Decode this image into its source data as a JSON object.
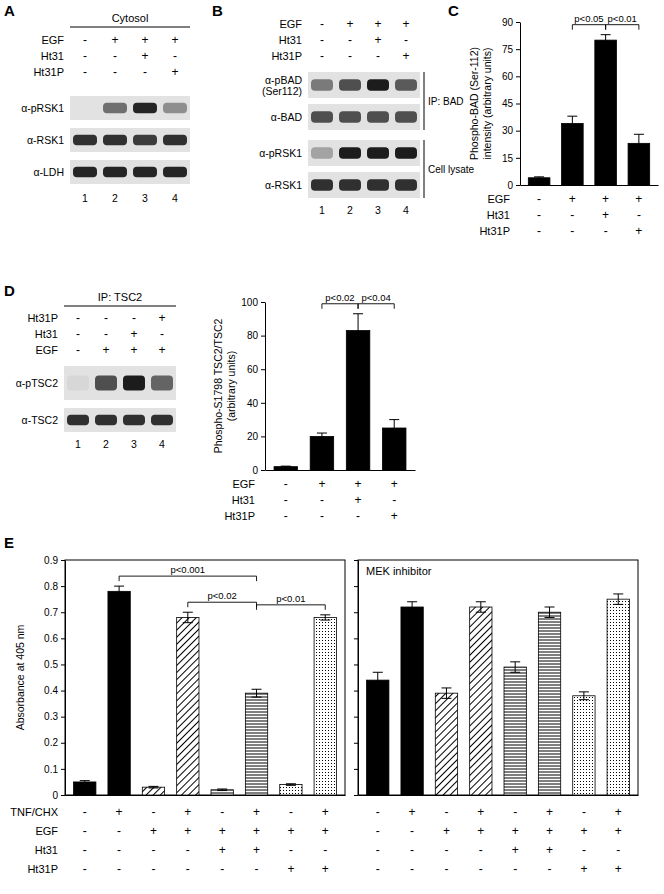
{
  "chart_data": [
    {
      "type": "bar",
      "panel_label": "C",
      "y_label": [
        "Phospho-BAD (Ser-112)",
        "intensity (arbitrary units)"
      ],
      "categories": [
        null,
        null,
        null,
        null
      ],
      "values": [
        4,
        34,
        80,
        23
      ],
      "errors": [
        0.5,
        4,
        3,
        5
      ],
      "color": "#000000",
      "ylim": [
        0,
        90
      ],
      "yticks": [
        0,
        15,
        30,
        45,
        60,
        75,
        90
      ],
      "tick_labels": "y",
      "annotations": [
        {
          "text": "p<0.05",
          "between": [
            1,
            2
          ]
        },
        {
          "text": "p<0.01",
          "between": [
            2,
            3
          ]
        }
      ],
      "conditions": [
        {
          "label": "EGF",
          "signs": [
            "-",
            "+",
            "+",
            "+"
          ]
        },
        {
          "label": "Ht31",
          "signs": [
            "-",
            "-",
            "+",
            "-"
          ]
        },
        {
          "label": "Ht31P",
          "signs": [
            "-",
            "-",
            "-",
            "+"
          ]
        }
      ]
    },
    {
      "type": "bar",
      "y_label": [
        "Phospho-S1798 TSC2/TSC2",
        "(arbitrary units)"
      ],
      "categories": [
        null,
        null,
        null,
        null
      ],
      "values": [
        2,
        20,
        83,
        25
      ],
      "errors": [
        0.3,
        2,
        10,
        5
      ],
      "color": "#000000",
      "ylim": [
        0,
        100
      ],
      "yticks": [
        0,
        20,
        40,
        60,
        80,
        100
      ],
      "tick_labels": "y",
      "annotations": [
        {
          "text": "p<0.02",
          "between": [
            1,
            2
          ]
        },
        {
          "text": "p<0.04",
          "between": [
            2,
            3
          ]
        }
      ],
      "conditions": [
        {
          "label": "EGF",
          "signs": [
            "-",
            "+",
            "+",
            "+"
          ]
        },
        {
          "label": "Ht31",
          "signs": [
            "-",
            "-",
            "+",
            "-"
          ]
        },
        {
          "label": "Ht31P",
          "signs": [
            "-",
            "-",
            "-",
            "+"
          ]
        }
      ]
    },
    {
      "type": "bar",
      "panel_label": "E",
      "y_label": [
        "Absorbance at 405 nm"
      ],
      "categories": [
        null,
        null,
        null,
        null,
        null,
        null,
        null,
        null
      ],
      "values": [
        0.05,
        0.78,
        0.03,
        0.68,
        0.02,
        0.39,
        0.04,
        0.68
      ],
      "errors": [
        0.005,
        0.02,
        0.003,
        0.02,
        0.003,
        0.015,
        0.003,
        0.01
      ],
      "color": "#000000",
      "ylim": [
        0,
        0.9
      ],
      "yticks": [
        0,
        0.1,
        0.2,
        0.3,
        0.4,
        0.5,
        0.6,
        0.7,
        0.8,
        0.9
      ],
      "tick_labels": "y",
      "annotations": [
        {
          "text": "p<0.001",
          "between": [
            1,
            5
          ]
        },
        {
          "text": "p<0.02",
          "between": [
            3,
            5
          ]
        },
        {
          "text": "p<0.01",
          "between": [
            5,
            7
          ]
        }
      ],
      "conditions": [
        {
          "label": "TNF/CHX",
          "signs": [
            "-",
            "+",
            "-",
            "+",
            "-",
            "+",
            "-",
            "+"
          ]
        },
        {
          "label": "EGF",
          "signs": [
            "-",
            "-",
            "+",
            "+",
            "+",
            "+",
            "+",
            "+"
          ]
        },
        {
          "label": "Ht31",
          "signs": [
            "-",
            "-",
            "-",
            "-",
            "+",
            "+",
            "-",
            "-"
          ]
        },
        {
          "label": "Ht31P",
          "signs": [
            "-",
            "-",
            "-",
            "-",
            "-",
            "-",
            "+",
            "+"
          ]
        }
      ]
    },
    {
      "type": "bar",
      "title": "MEK inhibitor",
      "categories": [
        null,
        null,
        null,
        null,
        null,
        null,
        null,
        null
      ],
      "values": [
        0.44,
        0.72,
        0.39,
        0.72,
        0.49,
        0.7,
        0.38,
        0.75
      ],
      "errors": [
        0.03,
        0.02,
        0.02,
        0.02,
        0.02,
        0.02,
        0.015,
        0.02
      ],
      "color": "#000000",
      "ylim": [
        0,
        0.9
      ],
      "yticks": [
        0,
        0.1,
        0.2,
        0.3,
        0.4,
        0.5,
        0.6,
        0.7,
        0.8,
        0.9
      ],
      "tick_labels": false,
      "conditions": [
        {
          "signs": [
            "-",
            "+",
            "-",
            "+",
            "-",
            "+",
            "-",
            "+"
          ]
        },
        {
          "signs": [
            "-",
            "-",
            "+",
            "+",
            "+",
            "+",
            "+",
            "+"
          ]
        },
        {
          "signs": [
            "-",
            "-",
            "-",
            "-",
            "+",
            "+",
            "-",
            "-"
          ]
        },
        {
          "signs": [
            "-",
            "-",
            "-",
            "-",
            "-",
            "-",
            "+",
            "+"
          ]
        }
      ]
    }
  ],
  "blots": [
    {
      "panel_label": "A",
      "header": "Cytosol",
      "conditions": [
        {
          "label": "EGF",
          "signs": [
            "-",
            "+",
            "+",
            "+"
          ]
        },
        {
          "label": "Ht31",
          "signs": [
            "-",
            "-",
            "+",
            "-"
          ]
        },
        {
          "label": "Ht31P",
          "signs": [
            "-",
            "-",
            "-",
            "+"
          ]
        }
      ],
      "rows": [
        {
          "label": [
            "α-pRSK1"
          ],
          "intensities": [
            0,
            0.55,
            0.9,
            0.4
          ]
        },
        {
          "label": [
            "α-RSK1"
          ],
          "intensities": [
            0.85,
            0.85,
            0.8,
            0.85
          ]
        },
        {
          "label": [
            "α-LDH"
          ],
          "intensities": [
            0.9,
            0.9,
            0.9,
            0.9
          ]
        }
      ],
      "lanes": [
        1,
        2,
        3,
        4
      ]
    },
    {
      "panel_label": "B",
      "conditions": [
        {
          "label": "EGF",
          "signs": [
            "-",
            "+",
            "+",
            "+"
          ]
        },
        {
          "label": "Ht31",
          "signs": [
            "-",
            "-",
            "+",
            "-"
          ]
        },
        {
          "label": "Ht31P",
          "signs": [
            "-",
            "-",
            "-",
            "+"
          ]
        }
      ],
      "rows": [
        {
          "label": [
            "α-pBAD",
            "(Ser112)"
          ],
          "intensities": [
            0.5,
            0.7,
            0.95,
            0.65
          ]
        },
        {
          "label": [
            "α-BAD"
          ],
          "intensities": [
            0.7,
            0.7,
            0.7,
            0.7
          ]
        },
        {
          "label": [
            "α-pRSK1"
          ],
          "intensities": [
            0.3,
            0.95,
            0.95,
            0.95
          ]
        },
        {
          "label": [
            "α-RSK1"
          ],
          "intensities": [
            0.85,
            0.85,
            0.85,
            0.85
          ]
        }
      ],
      "groups": [
        {
          "label": "IP: BAD",
          "rows": [
            0,
            1
          ]
        },
        {
          "label": "Cell lysate",
          "rows": [
            2,
            3
          ]
        }
      ],
      "lanes": [
        1,
        2,
        3,
        4
      ]
    },
    {
      "panel_label": "D",
      "header": "IP: TSC2",
      "conditions": [
        {
          "label": "Ht31P",
          "signs": [
            "-",
            "-",
            "-",
            "+"
          ]
        },
        {
          "label": "Ht31",
          "signs": [
            "-",
            "-",
            "+",
            "-"
          ]
        },
        {
          "label": "EGF",
          "signs": [
            "-",
            "+",
            "+",
            "+"
          ]
        }
      ],
      "rows": [
        {
          "label": [
            "α-pTSC2"
          ],
          "intensities": [
            0.05,
            0.7,
            0.95,
            0.6
          ]
        },
        {
          "label": [
            "α-TSC2"
          ],
          "intensities": [
            0.85,
            0.85,
            0.85,
            0.85
          ]
        }
      ],
      "lanes": [
        1,
        2,
        3,
        4
      ]
    }
  ]
}
